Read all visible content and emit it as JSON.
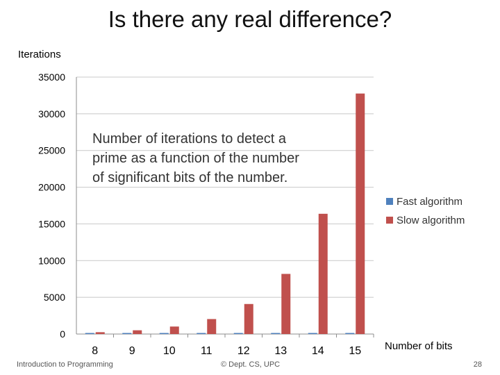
{
  "slide": {
    "title": "Is there any real difference?",
    "footer_left": "Introduction to Programming",
    "footer_center": "© Dept. CS, UPC",
    "page_number": "28"
  },
  "chart_data": {
    "type": "bar",
    "title": "",
    "annotation": [
      "Number of iterations to detect a",
      "prime as a function of the number",
      "of significant bits of the number."
    ],
    "xlabel": "Number of bits",
    "ylabel": "Iterations",
    "categories": [
      "8",
      "9",
      "10",
      "11",
      "12",
      "13",
      "14",
      "15"
    ],
    "series": [
      {
        "name": "Fast algorithm",
        "color": "#4f81bd",
        "values": [
          10,
          11,
          12,
          12,
          13,
          14,
          15,
          16
        ]
      },
      {
        "name": "Slow algorithm",
        "color": "#c0504d",
        "values": [
          250,
          510,
          1020,
          2040,
          4090,
          8190,
          16380,
          32760
        ]
      }
    ],
    "ylim": [
      0,
      35000
    ],
    "yticks": [
      "0",
      "5000",
      "10000",
      "15000",
      "20000",
      "25000",
      "30000",
      "35000"
    ],
    "grid": true,
    "legend": "right"
  }
}
